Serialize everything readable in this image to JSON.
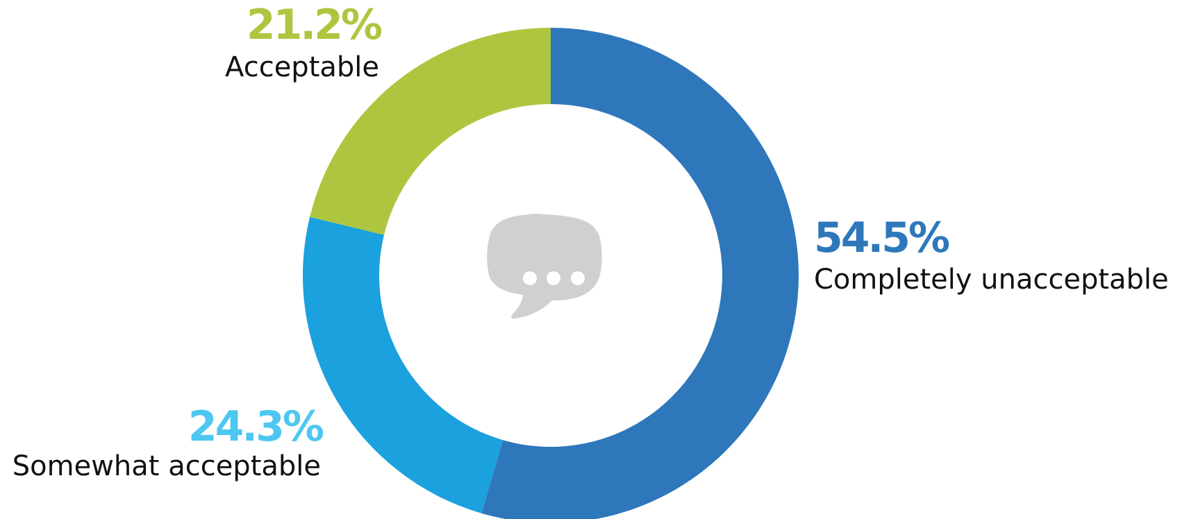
{
  "chart_data": {
    "type": "pie",
    "style": "donut",
    "slices": [
      {
        "label": "Completely unacceptable",
        "value": 54.5,
        "value_label": "54.5%",
        "color": "#2E77BB"
      },
      {
        "label": "Somewhat acceptable",
        "value": 24.3,
        "value_label": "24.3%",
        "color": "#1BA1DD",
        "label_color": "#4EC7F0"
      },
      {
        "label": "Acceptable",
        "value": 21.2,
        "value_label": "21.2%",
        "color": "#AEC63F"
      }
    ],
    "start": "12 o'clock",
    "direction": "clockwise",
    "legend": "none",
    "center_icon": "speech-bubble-icon",
    "center_icon_color": "#CFD0D2"
  }
}
